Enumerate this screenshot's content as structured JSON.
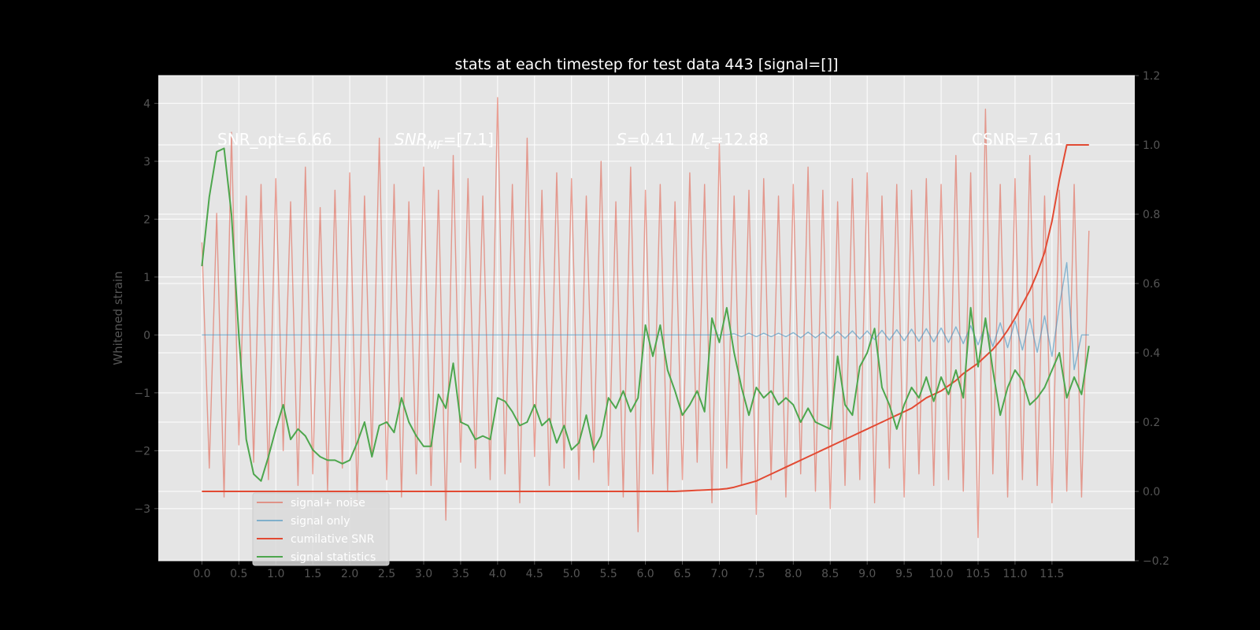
{
  "chart_data": {
    "type": "line",
    "title": "stats at each timestep for test data 443 [signal=[]]",
    "y_label": "Whitened strain",
    "grid": true,
    "legend": "lower left",
    "xlim": [
      -0.59,
      12.62
    ],
    "xticks": [
      {
        "value": 0,
        "label": "0.0"
      },
      0.5,
      {
        "value": 1,
        "label": "1.0"
      },
      1.5,
      {
        "value": 2,
        "label": "2.0"
      },
      2.5,
      {
        "value": 3,
        "label": "3.0"
      },
      3.5,
      {
        "value": 4,
        "label": "4.0"
      },
      4.5,
      {
        "value": 5,
        "label": "5.0"
      },
      5.5,
      {
        "value": 6,
        "label": "6.0"
      },
      6.5,
      {
        "value": 7,
        "label": "7.0"
      },
      7.5,
      {
        "value": 8,
        "label": "8.0"
      },
      8.5,
      {
        "value": 9,
        "label": "9.0"
      },
      9.5,
      {
        "value": 10,
        "label": "10.0"
      },
      10.5,
      {
        "value": 11,
        "label": "11.0"
      },
      11.5
    ],
    "ylim": [
      -3.9,
      4.48
    ],
    "yticks": [
      {
        "value": -3,
        "label": "−3"
      },
      {
        "value": -2,
        "label": "−2"
      },
      {
        "value": -1,
        "label": "−1"
      },
      0,
      1,
      2,
      3,
      4
    ],
    "y2lim": [
      -0.2,
      1.2
    ],
    "y2ticks": [
      {
        "value": -0.2,
        "label": "−0.2"
      },
      {
        "value": 0,
        "label": "0.0"
      },
      0.2,
      0.4,
      0.6,
      0.8,
      {
        "value": 1,
        "label": "1.0"
      },
      1.2
    ],
    "annotations": [
      {
        "parts": [
          {
            "text": "SNR_opt=6.66"
          }
        ]
      },
      {
        "parts": [
          {
            "text": "SNR",
            "italic": true
          },
          {
            "text": "MF",
            "italic": true,
            "sub": true
          },
          {
            "text": "=[7.1]"
          }
        ]
      },
      {
        "parts": [
          {
            "text": "S",
            "italic": true
          },
          {
            "text": "=0.41"
          }
        ]
      },
      {
        "parts": [
          {
            "text": "M",
            "italic": true
          },
          {
            "text": "c",
            "italic": true,
            "sub": true
          },
          {
            "text": "=12.88"
          }
        ]
      },
      {
        "parts": [
          {
            "text": "CSNR=7.61"
          }
        ]
      }
    ],
    "x": [
      0.0,
      0.1,
      0.2,
      0.3,
      0.4,
      0.5,
      0.6,
      0.7,
      0.8,
      0.9,
      1.0,
      1.1,
      1.2,
      1.3,
      1.4,
      1.5,
      1.6,
      1.7,
      1.8,
      1.9,
      2.0,
      2.1,
      2.2,
      2.3,
      2.4,
      2.5,
      2.6,
      2.7,
      2.8,
      2.9,
      3.0,
      3.1,
      3.2,
      3.3,
      3.4,
      3.5,
      3.6,
      3.7,
      3.8,
      3.9,
      4.0,
      4.1,
      4.2,
      4.3,
      4.4,
      4.5,
      4.6,
      4.7,
      4.8,
      4.9,
      5.0,
      5.1,
      5.2,
      5.3,
      5.4,
      5.5,
      5.6,
      5.7,
      5.8,
      5.9,
      6.0,
      6.1,
      6.2,
      6.3,
      6.4,
      6.5,
      6.6,
      6.7,
      6.8,
      6.9,
      7.0,
      7.1,
      7.2,
      7.3,
      7.4,
      7.5,
      7.6,
      7.7,
      7.8,
      7.9,
      8.0,
      8.1,
      8.2,
      8.3,
      8.4,
      8.5,
      8.6,
      8.7,
      8.8,
      8.9,
      9.0,
      9.1,
      9.2,
      9.3,
      9.4,
      9.5,
      9.6,
      9.7,
      9.8,
      9.9,
      10.0,
      10.1,
      10.2,
      10.3,
      10.4,
      10.5,
      10.6,
      10.7,
      10.8,
      10.9,
      11.0,
      11.1,
      11.2,
      11.3,
      11.4,
      11.5,
      11.6,
      11.7,
      11.8,
      11.9,
      12.0
    ],
    "series": [
      {
        "name": "signal+ noise",
        "color": "#E24A33",
        "alpha": 0.5,
        "values": [
          1.6,
          -2.3,
          2.1,
          -2.8,
          3.5,
          -1.9,
          2.4,
          -2.2,
          2.6,
          -2.5,
          2.7,
          -2.0,
          2.3,
          -2.6,
          2.9,
          -2.4,
          2.2,
          -2.7,
          2.5,
          -2.3,
          2.8,
          -2.9,
          2.4,
          -2.1,
          3.4,
          -2.5,
          2.6,
          -2.8,
          2.3,
          -2.4,
          2.9,
          -2.6,
          2.5,
          -3.2,
          3.1,
          -2.2,
          2.7,
          -2.3,
          2.4,
          -2.5,
          4.1,
          -2.4,
          2.6,
          -2.9,
          3.4,
          -2.1,
          2.5,
          -2.6,
          2.8,
          -2.3,
          2.7,
          -2.5,
          2.4,
          -2.2,
          3.0,
          -2.6,
          2.3,
          -2.8,
          2.9,
          -3.4,
          2.5,
          -2.4,
          2.6,
          -2.7,
          2.3,
          -2.5,
          2.8,
          -2.2,
          2.6,
          -2.9,
          3.3,
          -2.3,
          2.4,
          -2.6,
          2.5,
          -3.1,
          2.7,
          -2.5,
          2.4,
          -2.8,
          2.6,
          -2.4,
          2.9,
          -2.7,
          2.5,
          -3.0,
          2.3,
          -2.6,
          2.7,
          -2.5,
          2.8,
          -2.9,
          2.4,
          -2.3,
          2.6,
          -2.8,
          2.5,
          -2.4,
          2.7,
          -2.6,
          2.6,
          -2.5,
          3.1,
          -2.7,
          2.8,
          -3.5,
          3.9,
          -2.4,
          2.6,
          -2.8,
          2.7,
          -2.5,
          3.1,
          -2.6,
          2.4,
          -2.9,
          2.5,
          -2.7,
          2.6,
          -2.8,
          1.8
        ]
      },
      {
        "name": "signal only",
        "color": "#348ABD",
        "alpha": 0.55,
        "values": [
          0,
          0,
          0,
          0,
          0,
          0,
          0,
          0,
          0,
          0,
          0,
          0,
          0,
          0,
          0,
          0,
          0,
          0,
          0,
          0,
          0,
          0,
          0,
          0,
          0,
          0,
          0,
          0,
          0,
          0,
          0,
          0,
          0,
          0,
          0,
          0,
          0,
          0,
          0,
          0,
          0,
          0,
          0,
          0,
          0,
          0,
          0,
          0,
          0,
          0,
          0,
          0,
          0,
          0,
          0,
          0,
          0,
          0,
          0,
          0,
          0,
          0,
          0,
          0,
          0,
          0,
          0,
          0,
          0,
          0,
          0,
          0,
          0.02,
          -0.03,
          0.03,
          -0.03,
          0.03,
          -0.03,
          0.03,
          -0.03,
          0.04,
          -0.05,
          0.05,
          -0.05,
          0.05,
          -0.06,
          0.06,
          -0.06,
          0.07,
          -0.07,
          0.07,
          -0.08,
          0.08,
          -0.09,
          0.09,
          -0.1,
          0.1,
          -0.11,
          0.11,
          -0.12,
          0.12,
          -0.13,
          0.14,
          -0.15,
          0.16,
          -0.17,
          0.18,
          -0.2,
          0.21,
          -0.22,
          0.24,
          -0.26,
          0.28,
          -0.3,
          0.33,
          -0.37,
          0.5,
          1.25,
          -0.6,
          0.0,
          0.0
        ]
      },
      {
        "name": "cumilative SNR",
        "color": "#E24A33",
        "alpha": 1,
        "axis": "y2",
        "values": [
          0,
          0,
          0,
          0,
          0,
          0,
          0,
          0,
          0,
          0,
          0,
          0,
          0,
          0,
          0,
          0,
          0,
          0,
          0,
          0,
          0,
          0,
          0,
          0,
          0,
          0,
          0,
          0,
          0,
          0,
          0,
          0,
          0,
          0,
          0,
          0,
          0,
          0,
          0,
          0,
          0,
          0,
          0,
          0,
          0,
          0,
          0,
          0,
          0,
          0,
          0,
          0,
          0,
          0,
          0,
          0,
          0,
          0,
          0,
          0,
          0,
          0,
          0,
          0,
          0,
          0.001,
          0.002,
          0.003,
          0.004,
          0.005,
          0.006,
          0.008,
          0.012,
          0.018,
          0.024,
          0.03,
          0.04,
          0.05,
          0.06,
          0.07,
          0.08,
          0.09,
          0.1,
          0.11,
          0.12,
          0.13,
          0.14,
          0.15,
          0.16,
          0.17,
          0.18,
          0.19,
          0.2,
          0.21,
          0.22,
          0.23,
          0.24,
          0.255,
          0.27,
          0.28,
          0.29,
          0.305,
          0.32,
          0.34,
          0.355,
          0.37,
          0.39,
          0.41,
          0.435,
          0.465,
          0.5,
          0.54,
          0.58,
          0.63,
          0.69,
          0.78,
          0.9,
          1.0,
          1.0,
          1.0,
          1.0
        ]
      },
      {
        "name": "signal statistics",
        "color": "#4DA64D",
        "alpha": 1,
        "axis": "y2",
        "values": [
          0.65,
          0.85,
          0.98,
          0.99,
          0.8,
          0.45,
          0.15,
          0.05,
          0.03,
          0.1,
          0.18,
          0.25,
          0.15,
          0.18,
          0.16,
          0.12,
          0.1,
          0.09,
          0.09,
          0.08,
          0.09,
          0.14,
          0.2,
          0.1,
          0.19,
          0.2,
          0.17,
          0.27,
          0.2,
          0.16,
          0.13,
          0.13,
          0.28,
          0.24,
          0.37,
          0.2,
          0.19,
          0.15,
          0.16,
          0.15,
          0.27,
          0.26,
          0.23,
          0.19,
          0.2,
          0.25,
          0.19,
          0.21,
          0.14,
          0.19,
          0.12,
          0.14,
          0.22,
          0.12,
          0.16,
          0.27,
          0.24,
          0.29,
          0.23,
          0.27,
          0.48,
          0.39,
          0.48,
          0.35,
          0.29,
          0.22,
          0.25,
          0.29,
          0.23,
          0.5,
          0.43,
          0.53,
          0.4,
          0.3,
          0.22,
          0.3,
          0.27,
          0.29,
          0.25,
          0.27,
          0.25,
          0.2,
          0.24,
          0.2,
          0.19,
          0.18,
          0.39,
          0.25,
          0.22,
          0.36,
          0.4,
          0.47,
          0.3,
          0.25,
          0.18,
          0.25,
          0.3,
          0.27,
          0.33,
          0.26,
          0.33,
          0.28,
          0.35,
          0.27,
          0.53,
          0.36,
          0.5,
          0.35,
          0.22,
          0.3,
          0.35,
          0.32,
          0.25,
          0.27,
          0.3,
          0.35,
          0.4,
          0.27,
          0.33,
          0.28,
          0.42
        ]
      }
    ]
  }
}
